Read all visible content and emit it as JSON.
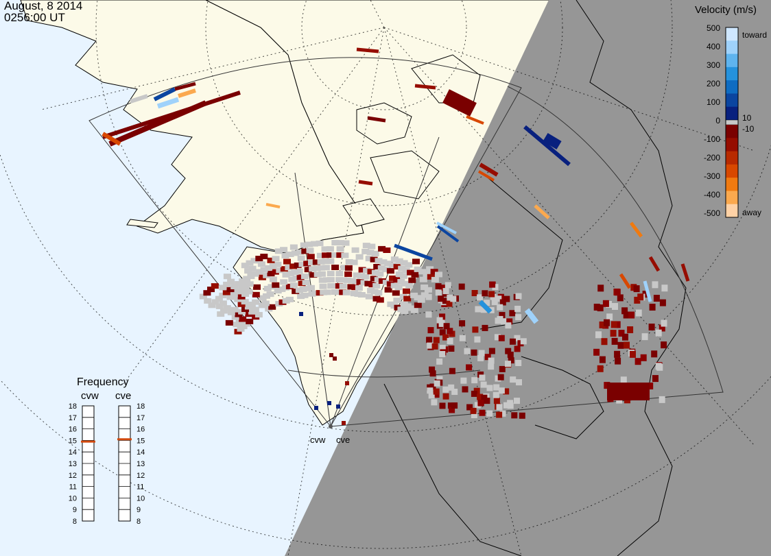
{
  "header": {
    "date": "August, 8 2014",
    "time": "0256:00 UT"
  },
  "velocity_scale": {
    "title": "Velocity (m/s)",
    "toward_label": "toward",
    "away_label": "away",
    "ticks": [
      "500",
      "400",
      "300",
      "200",
      "100",
      "0",
      "-100",
      "-200",
      "-300",
      "-400",
      "-500"
    ],
    "inner_ticks": [
      "10",
      "-10"
    ],
    "toward_colors": [
      "#cfe7ff",
      "#9fd2fb",
      "#5fb4ee",
      "#2592dc",
      "#0f6cc2",
      "#0b45a0",
      "#08207e"
    ],
    "away_colors": [
      "#7a0000",
      "#960d00",
      "#b82a00",
      "#d84800",
      "#f07a10",
      "#fba94e",
      "#ffd2a6"
    ],
    "low_velocity_color": "#c8c8c8"
  },
  "frequency_panel": {
    "title": "Frequency",
    "radars": [
      {
        "name": "cvw",
        "frequency_mhz": 14.9
      },
      {
        "name": "cve",
        "frequency_mhz": 15.1
      }
    ],
    "ticks": [
      "18",
      "17",
      "16",
      "15",
      "14",
      "13",
      "12",
      "11",
      "10",
      "9",
      "8"
    ],
    "indicator_color": "#d34b10"
  },
  "sites": {
    "cvw_label": "cvw",
    "cve_label": "cve"
  },
  "map_colors": {
    "ocean": "#e8f4ff",
    "land": "#fcfae8",
    "night": "#969696",
    "coast": "#000000"
  }
}
